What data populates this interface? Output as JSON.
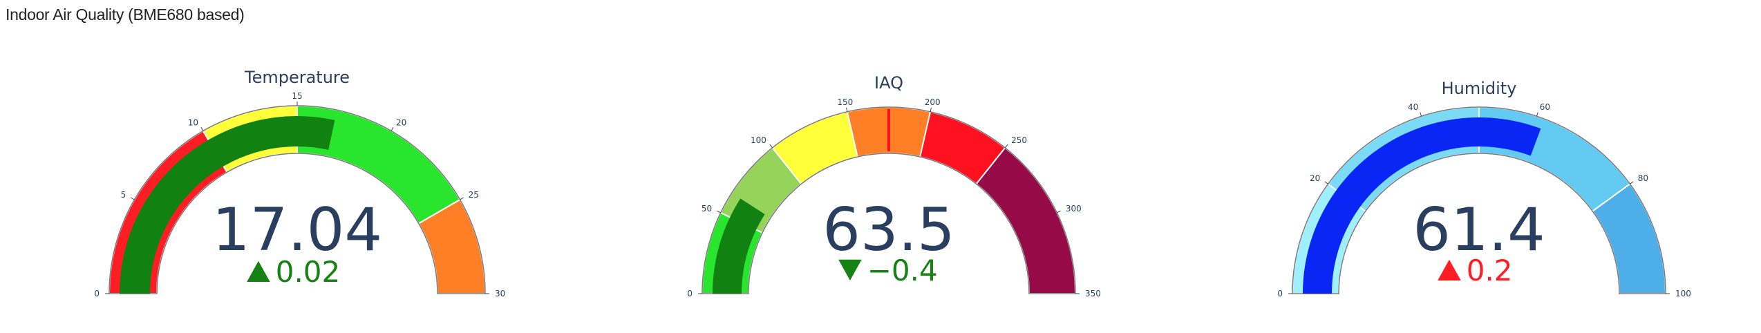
{
  "page": {
    "title": "Indoor Air Quality (BME680 based)"
  },
  "chart_data": [
    {
      "type": "gauge",
      "title": "Temperature",
      "value": 17.04,
      "value_text": "17.04",
      "delta": {
        "text": "0.02",
        "direction": "up",
        "color": "#168216"
      },
      "range": [
        0,
        30
      ],
      "ticks": [
        0,
        5,
        10,
        15,
        20,
        25,
        30
      ],
      "bar_color": "#118211",
      "bands": [
        {
          "from": 0,
          "to": 10,
          "color": "#ff1d25"
        },
        {
          "from": 10,
          "to": 15,
          "color": "#ffff3a"
        },
        {
          "from": 15,
          "to": 25,
          "color": "#2ae52e"
        },
        {
          "from": 25,
          "to": 30,
          "color": "#ff7f27"
        }
      ],
      "threshold": null
    },
    {
      "type": "gauge",
      "title": "IAQ",
      "value": 63.5,
      "value_text": "63.5",
      "delta": {
        "text": "−0.4",
        "direction": "down",
        "color": "#168216"
      },
      "range": [
        0,
        350
      ],
      "ticks": [
        0,
        50,
        100,
        150,
        200,
        250,
        300,
        350
      ],
      "bar_color": "#118211",
      "bands": [
        {
          "from": 0,
          "to": 50,
          "color": "#2ae52e"
        },
        {
          "from": 50,
          "to": 100,
          "color": "#96d35a"
        },
        {
          "from": 100,
          "to": 150,
          "color": "#ffff3a"
        },
        {
          "from": 150,
          "to": 200,
          "color": "#ff7f27"
        },
        {
          "from": 200,
          "to": 250,
          "color": "#ff1120"
        },
        {
          "from": 250,
          "to": 350,
          "color": "#960a48"
        }
      ],
      "threshold": {
        "value": 175,
        "color": "#ff1120"
      }
    },
    {
      "type": "gauge",
      "title": "Humidity",
      "value": 61.4,
      "value_text": "61.4",
      "delta": {
        "text": "0.2",
        "direction": "up",
        "color": "#ff1d25"
      },
      "range": [
        0,
        100
      ],
      "ticks": [
        0,
        20,
        40,
        60,
        80,
        100
      ],
      "bar_color": "#0a26f5",
      "bands": [
        {
          "from": 0,
          "to": 20,
          "color": "#9ff0ff"
        },
        {
          "from": 20,
          "to": 50,
          "color": "#7bdaf6"
        },
        {
          "from": 50,
          "to": 80,
          "color": "#63cbf2"
        },
        {
          "from": 80,
          "to": 100,
          "color": "#4eaee8"
        }
      ],
      "threshold": null
    }
  ]
}
